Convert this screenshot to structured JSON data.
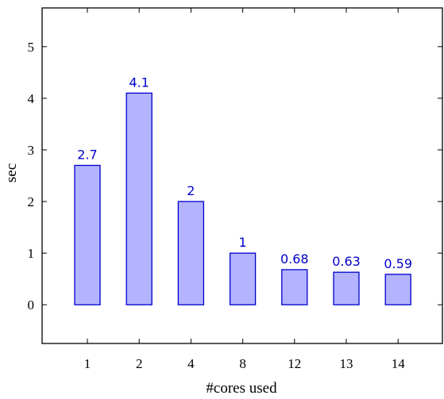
{
  "chart_data": {
    "type": "bar",
    "categories": [
      "1",
      "2",
      "4",
      "8",
      "12",
      "13",
      "14"
    ],
    "values": [
      2.7,
      4.1,
      2,
      1,
      0.68,
      0.63,
      0.59
    ],
    "value_labels": [
      "2.7",
      "4.1",
      "2",
      "1",
      "0.68",
      "0.63",
      "0.59"
    ],
    "xlabel": "#cores used",
    "ylabel": "sec",
    "ylim": [
      -0.75,
      5.75
    ],
    "yticks": [
      0,
      1,
      2,
      3,
      4,
      5
    ],
    "grid": false,
    "colors": {
      "bar_fill": "#b3b3ff",
      "bar_stroke": "#0000cc",
      "label": "#0000cc",
      "axis": "#000000"
    }
  }
}
